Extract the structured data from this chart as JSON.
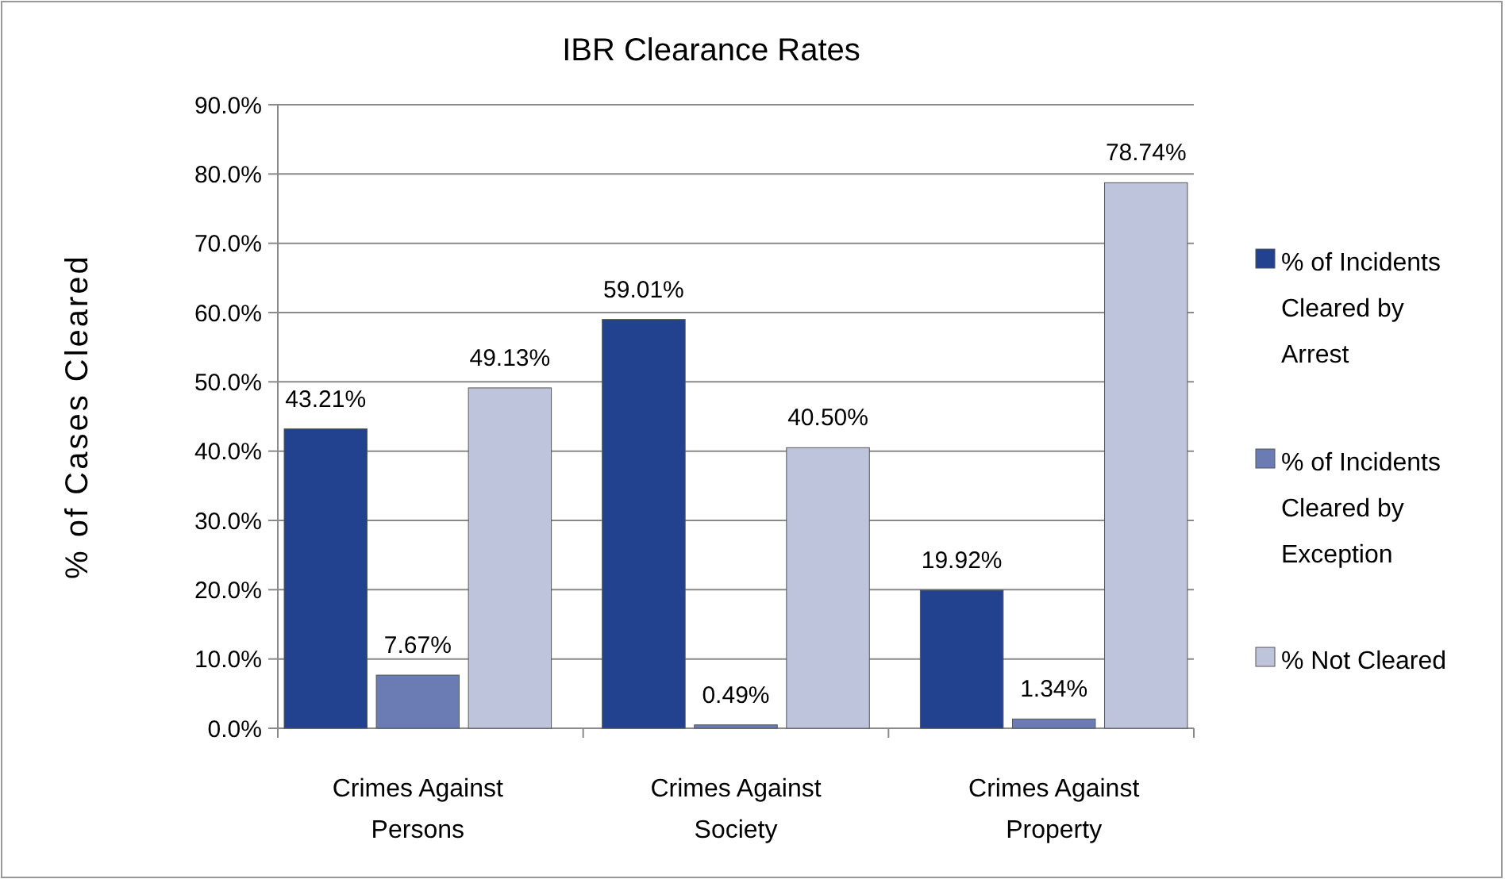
{
  "chart_data": {
    "type": "bar",
    "title": "IBR Clearance Rates",
    "ylabel": "% of Cases Cleared",
    "categories": [
      "Crimes Against Persons",
      "Crimes Against Society",
      "Crimes Against Property"
    ],
    "series": [
      {
        "name": "% of Incidents Cleared by Arrest",
        "color": "#22418f",
        "values": [
          43.21,
          59.01,
          19.92
        ],
        "value_labels": [
          "43.21%",
          "59.01%",
          "19.92%"
        ]
      },
      {
        "name": "% of Incidents Cleared by Exception",
        "color": "#6b7bb3",
        "values": [
          7.67,
          0.49,
          1.34
        ],
        "value_labels": [
          "7.67%",
          "0.49%",
          "1.34%"
        ]
      },
      {
        "name": "% Not Cleared",
        "color": "#bfc4dd",
        "values": [
          49.13,
          40.5,
          78.74
        ],
        "value_labels": [
          "49.13%",
          "40.50%",
          "78.74%"
        ]
      }
    ],
    "ylim": [
      0,
      90
    ],
    "yticks": [
      {
        "value": 0,
        "label": "0.0%"
      },
      {
        "value": 10,
        "label": "10.0%"
      },
      {
        "value": 20,
        "label": "20.0%"
      },
      {
        "value": 30,
        "label": "30.0%"
      },
      {
        "value": 40,
        "label": "40.0%"
      },
      {
        "value": 50,
        "label": "50.0%"
      },
      {
        "value": 60,
        "label": "60.0%"
      },
      {
        "value": 70,
        "label": "70.0%"
      },
      {
        "value": 80,
        "label": "80.0%"
      },
      {
        "value": 90,
        "label": "90.0%"
      }
    ],
    "grid": "y",
    "legend": "right"
  }
}
